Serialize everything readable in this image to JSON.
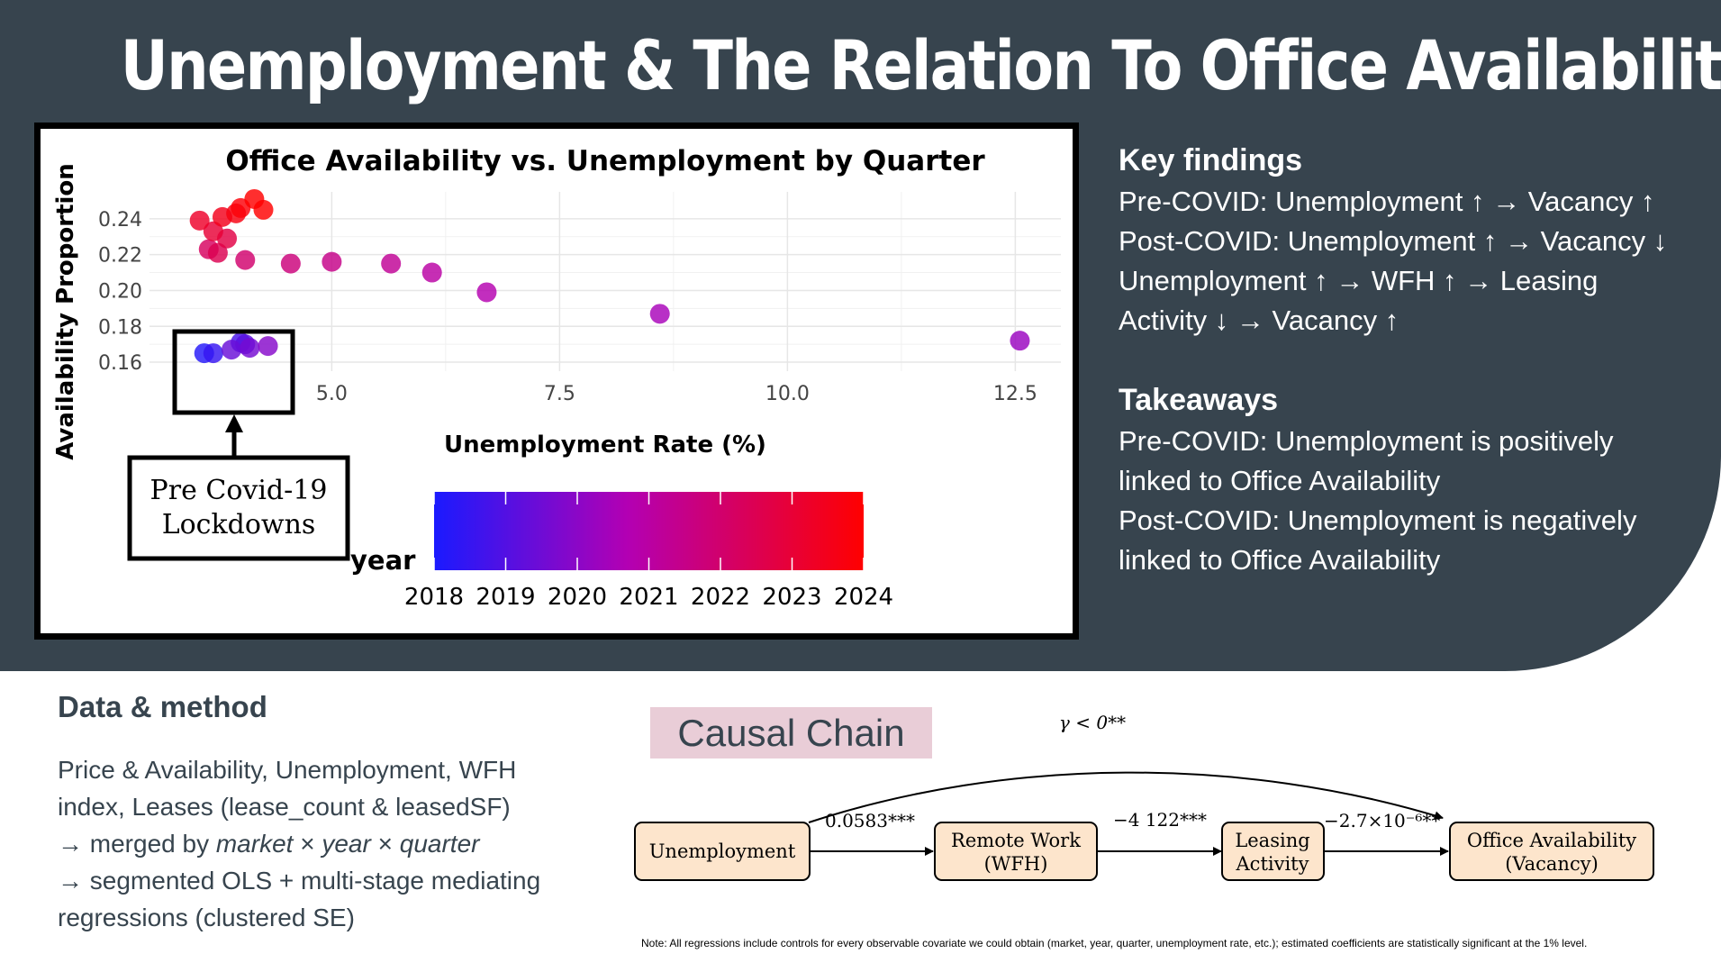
{
  "slide_title": "Unemployment & The Relation To Office Availability",
  "chart_data": {
    "type": "scatter",
    "title": "Office Availability vs. Unemployment by Quarter",
    "xlabel": "Unemployment Rate (%)",
    "ylabel": "Availability Proportion",
    "xlim": [
      3.0,
      13.0
    ],
    "ylim": [
      0.155,
      0.255
    ],
    "x_ticks": [
      "5.0",
      "7.5",
      "10.0",
      "12.5"
    ],
    "y_ticks": [
      "0.16",
      "0.18",
      "0.20",
      "0.22",
      "0.24"
    ],
    "grid": true,
    "color_legend": {
      "title": "year",
      "labels": [
        "2018",
        "2019",
        "2020",
        "2021",
        "2022",
        "2023",
        "2024"
      ],
      "color_low": "#1a1aff",
      "color_mid": "#b300b3",
      "color_high": "#ff0000"
    },
    "points": [
      {
        "x": 3.6,
        "y": 0.165,
        "year": 2018.2
      },
      {
        "x": 3.7,
        "y": 0.165,
        "year": 2018.5
      },
      {
        "x": 4.0,
        "y": 0.171,
        "year": 2018.8
      },
      {
        "x": 4.05,
        "y": 0.17,
        "year": 2019.1
      },
      {
        "x": 3.9,
        "y": 0.167,
        "year": 2019.4
      },
      {
        "x": 4.1,
        "y": 0.168,
        "year": 2019.6
      },
      {
        "x": 4.3,
        "y": 0.169,
        "year": 2019.9
      },
      {
        "x": 12.55,
        "y": 0.172,
        "year": 2020.25
      },
      {
        "x": 8.6,
        "y": 0.187,
        "year": 2020.5
      },
      {
        "x": 6.7,
        "y": 0.199,
        "year": 2020.75
      },
      {
        "x": 6.1,
        "y": 0.21,
        "year": 2021.0
      },
      {
        "x": 5.65,
        "y": 0.215,
        "year": 2021.25
      },
      {
        "x": 5.0,
        "y": 0.216,
        "year": 2021.5
      },
      {
        "x": 4.55,
        "y": 0.215,
        "year": 2021.75
      },
      {
        "x": 4.05,
        "y": 0.217,
        "year": 2022.0
      },
      {
        "x": 3.65,
        "y": 0.223,
        "year": 2022.25
      },
      {
        "x": 3.75,
        "y": 0.221,
        "year": 2022.5
      },
      {
        "x": 3.85,
        "y": 0.229,
        "year": 2022.75
      },
      {
        "x": 3.7,
        "y": 0.233,
        "year": 2023.0
      },
      {
        "x": 3.55,
        "y": 0.239,
        "year": 2023.25
      },
      {
        "x": 3.8,
        "y": 0.241,
        "year": 2023.5
      },
      {
        "x": 3.95,
        "y": 0.243,
        "year": 2023.7
      },
      {
        "x": 4.0,
        "y": 0.246,
        "year": 2023.85
      },
      {
        "x": 4.25,
        "y": 0.245,
        "year": 2024.0
      },
      {
        "x": 4.15,
        "y": 0.251,
        "year": 2024.2
      }
    ],
    "annotation": {
      "line1": "Pre Covid-19",
      "line2": "Lockdowns"
    }
  },
  "findings": {
    "heading": "Key findings",
    "lines": [
      "Pre-COVID: Unemployment ↑ → Vacancy ↑",
      "Post-COVID: Unemployment ↑ → Vacancy ↓",
      "Unemployment ↑ → WFH ↑ → Leasing",
      "Activity ↓ → Vacancy ↑"
    ]
  },
  "takeaways": {
    "heading": "Takeaways",
    "lines": [
      "Pre-COVID: Unemployment is positively",
      "linked to Office Availability",
      "Post-COVID: Unemployment is negatively",
      "linked to Office Availability"
    ]
  },
  "method": {
    "heading": "Data & method",
    "line1": "Price & Availability, Unemployment, WFH",
    "line2": "index, Leases (lease_count & leasedSF)",
    "line3_pre": "→ merged by ",
    "line3_market": "market",
    "line3_sep1": " × ",
    "line3_year": "year",
    "line3_sep2": " × ",
    "line3_quarter": "quarter",
    "line4": "→ segmented OLS + multi-stage mediating",
    "line5": "regressions (clustered SE)"
  },
  "causal": {
    "label": "Causal Chain",
    "gamma": "γ < 0**",
    "nodes": {
      "unemployment": "Unemployment",
      "wfh_line1": "Remote Work",
      "wfh_line2": "(WFH)",
      "leasing_line1": "Leasing",
      "leasing_line2": "Activity",
      "office_line1": "Office Availability",
      "office_line2": "(Vacancy)"
    },
    "coef1": "0.0583***",
    "coef2": "−4 122***",
    "coef3": "−2.7×10⁻⁶**"
  },
  "note": "Note: All regressions include controls for every observable covariate we could obtain (market, year, quarter, unemployment rate, etc.); estimated coefficients are statistically significant at the 1% level.",
  "colors": {
    "band": "#37444e",
    "node_fill": "#fde5cc",
    "label_fill": "#e9cdd7"
  }
}
